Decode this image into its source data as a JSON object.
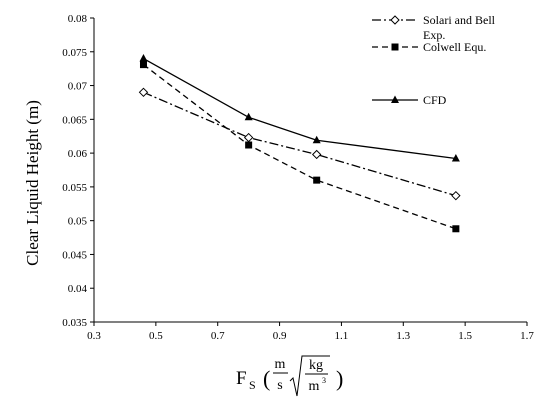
{
  "chart_data": {
    "type": "line",
    "title": "",
    "xlabel": {
      "symbol": "F",
      "subscript": "S",
      "unit_num": "m",
      "unit_den": "s",
      "unit_root_num": "kg",
      "unit_root_den": "m",
      "unit_root_den_exp": "3"
    },
    "ylabel": "Clear Liquid Height (m)",
    "xlim": [
      0.3,
      1.7
    ],
    "ylim": [
      0.035,
      0.08
    ],
    "xticks": [
      "0.3",
      "0.5",
      "0.7",
      "0.9",
      "1.1",
      "1.3",
      "1.5",
      "1.7"
    ],
    "yticks": [
      "0.035",
      "0.04",
      "0.045",
      "0.05",
      "0.055",
      "0.06",
      "0.065",
      "0.07",
      "0.075",
      "0.08"
    ],
    "grid": false,
    "legend_position": "top-right",
    "series": [
      {
        "name": "Solari and Bell Exp.",
        "name_lines": [
          "Solari and Bell",
          "Exp."
        ],
        "x": [
          0.46,
          0.8,
          1.02,
          1.47
        ],
        "y": [
          0.069,
          0.0623,
          0.0598,
          0.0537
        ],
        "marker": "diamond",
        "dash": "dashdot",
        "color": "#000000"
      },
      {
        "name": "Colwell Equ.",
        "name_lines": [
          "Colwell Equ."
        ],
        "x": [
          0.46,
          0.8,
          1.02,
          1.47
        ],
        "y": [
          0.0731,
          0.0612,
          0.056,
          0.0488
        ],
        "marker": "square",
        "dash": "dashed",
        "color": "#000000"
      },
      {
        "name": "CFD",
        "name_lines": [
          "CFD"
        ],
        "x": [
          0.46,
          0.8,
          1.02,
          1.47
        ],
        "y": [
          0.074,
          0.0653,
          0.0619,
          0.0592
        ],
        "marker": "triangle",
        "dash": "solid",
        "color": "#000000"
      }
    ]
  }
}
